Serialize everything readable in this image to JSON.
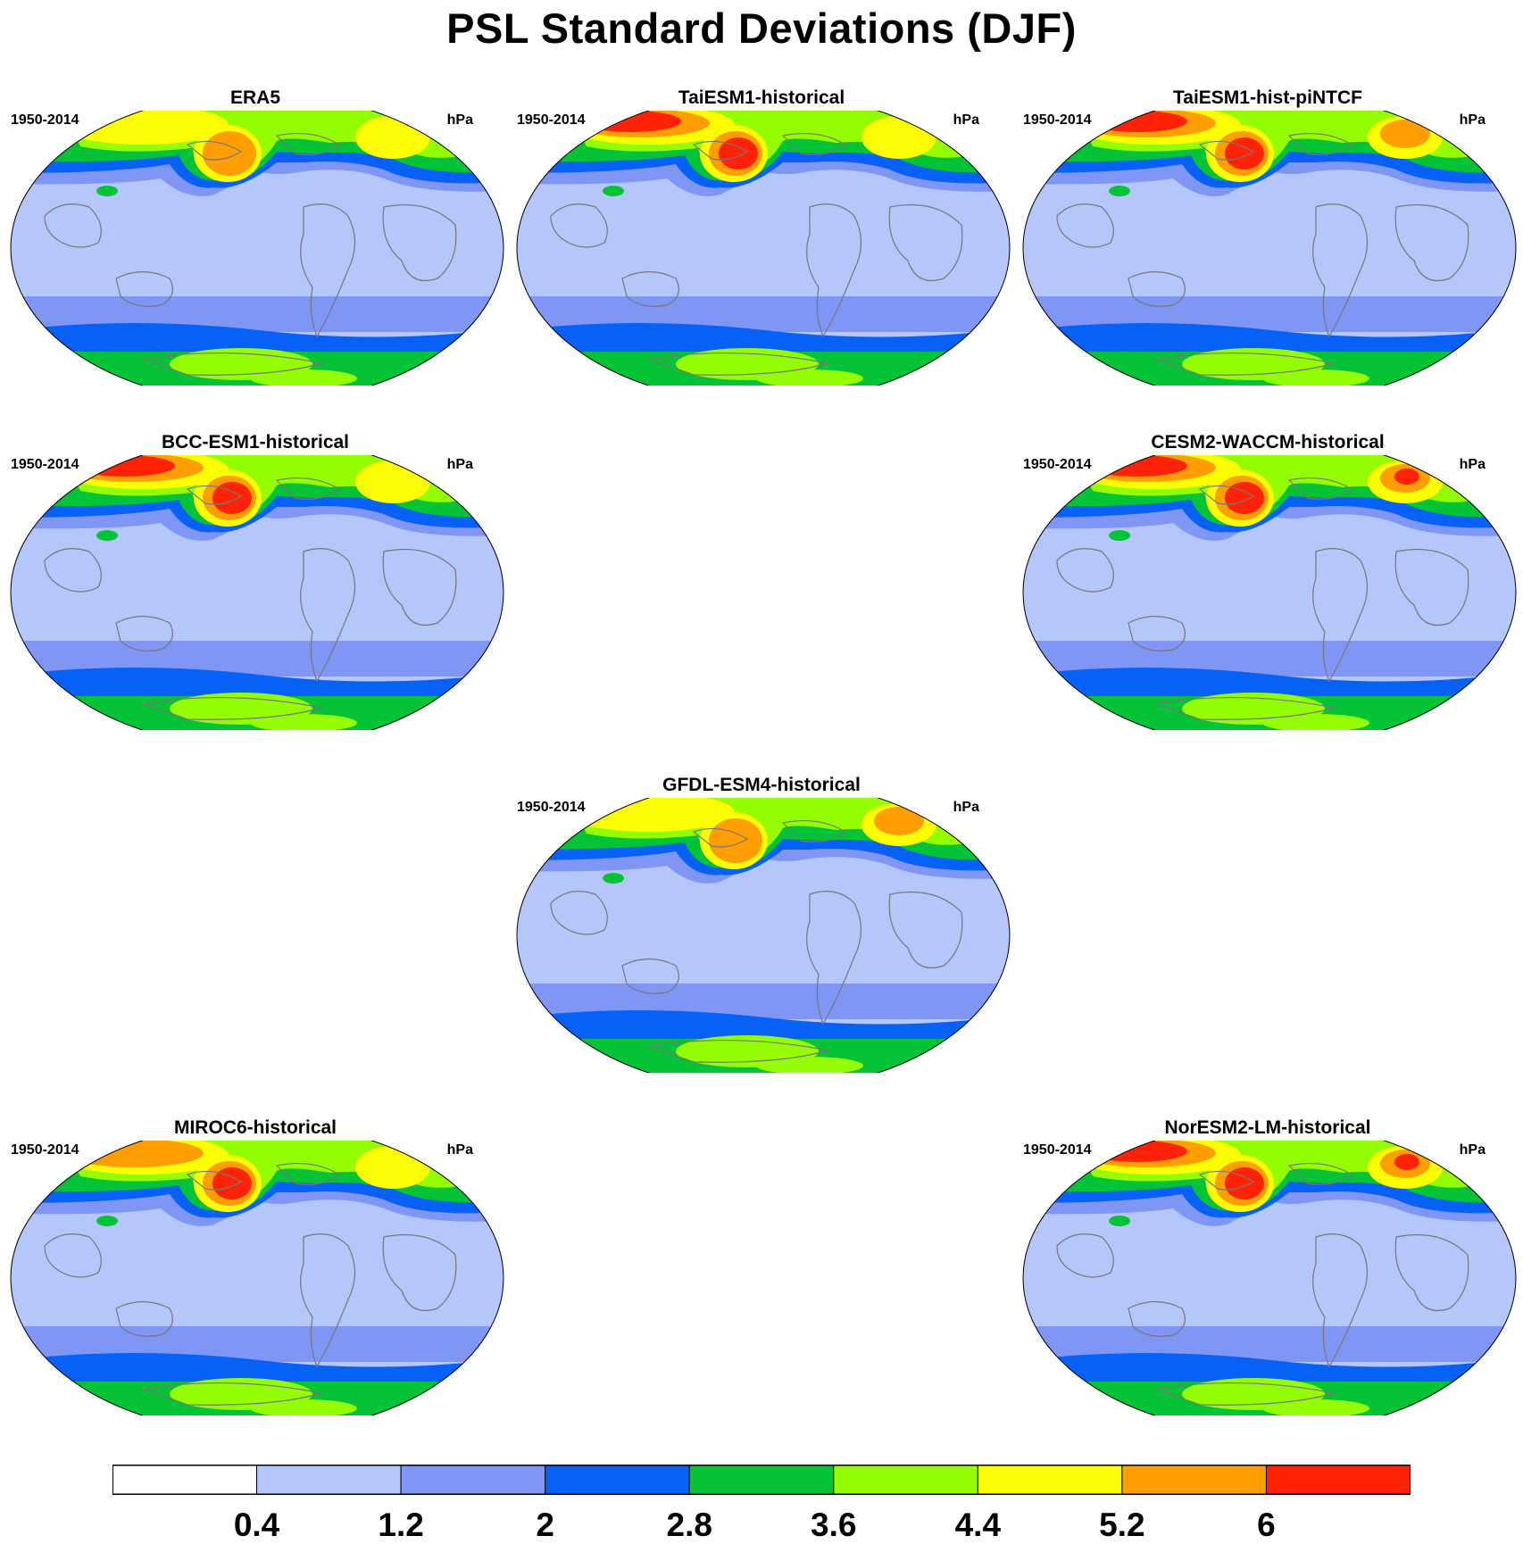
{
  "title": "PSL Standard Deviations (DJF)",
  "colors": {
    "levels": [
      "#ffffff",
      "#b4c6fa",
      "#7f96f4",
      "#0861f7",
      "#04c337",
      "#94fd04",
      "#fcfc04",
      "#ff9e02",
      "#ff2207"
    ],
    "coast": "#777777",
    "outline": "#000000"
  },
  "colorbar": {
    "tick_labels": [
      "0.4",
      "1.2",
      "2",
      "2.8",
      "3.6",
      "4.4",
      "5.2",
      "6"
    ]
  },
  "panels": [
    {
      "id": "era5",
      "title": "ERA5",
      "left_label": "1950-2014",
      "right_label": "hPa",
      "north_atlantic_level": 5.2,
      "north_pacific_level": 5.5,
      "north_asia_level": 5.2,
      "has_max_red": false
    },
    {
      "id": "taiesm1-historical",
      "title": "TaiESM1-historical",
      "left_label": "1950-2014",
      "right_label": "hPa",
      "north_atlantic_level": 6.2,
      "north_pacific_level": 6.2,
      "north_asia_level": 5.0,
      "has_max_red": true
    },
    {
      "id": "taiesm1-hist-pintcf",
      "title": "TaiESM1-hist-piNTCF",
      "left_label": "1950-2014",
      "right_label": "hPa",
      "north_atlantic_level": 6.2,
      "north_pacific_level": 6.4,
      "north_asia_level": 5.6,
      "has_max_red": true
    },
    {
      "id": "bcc-esm1-historical",
      "title": "BCC-ESM1-historical",
      "left_label": "1950-2014",
      "right_label": "hPa",
      "north_atlantic_level": 6.2,
      "north_pacific_level": 6.2,
      "north_asia_level": 5.0,
      "has_max_red": true
    },
    {
      "id": "cesm2-waccm-historical",
      "title": "CESM2-WACCM-historical",
      "left_label": "1950-2014",
      "right_label": "hPa",
      "north_atlantic_level": 6.2,
      "north_pacific_level": 6.4,
      "north_asia_level": 6.1,
      "has_max_red": true
    },
    {
      "id": "gfdl-esm4-historical",
      "title": "GFDL-ESM4-historical",
      "left_label": "1950-2014",
      "right_label": "hPa",
      "north_atlantic_level": 5.0,
      "north_pacific_level": 5.6,
      "north_asia_level": 5.3,
      "has_max_red": false
    },
    {
      "id": "miroc6-historical",
      "title": "MIROC6-historical",
      "left_label": "1950-2014",
      "right_label": "hPa",
      "north_atlantic_level": 5.6,
      "north_pacific_level": 6.3,
      "north_asia_level": 5.0,
      "has_max_red": true
    },
    {
      "id": "noresm2-lm-historical",
      "title": "NorESM2-LM-historical",
      "left_label": "1950-2014",
      "right_label": "hPa",
      "north_atlantic_level": 6.2,
      "north_pacific_level": 6.3,
      "north_asia_level": 6.1,
      "has_max_red": true
    }
  ]
}
